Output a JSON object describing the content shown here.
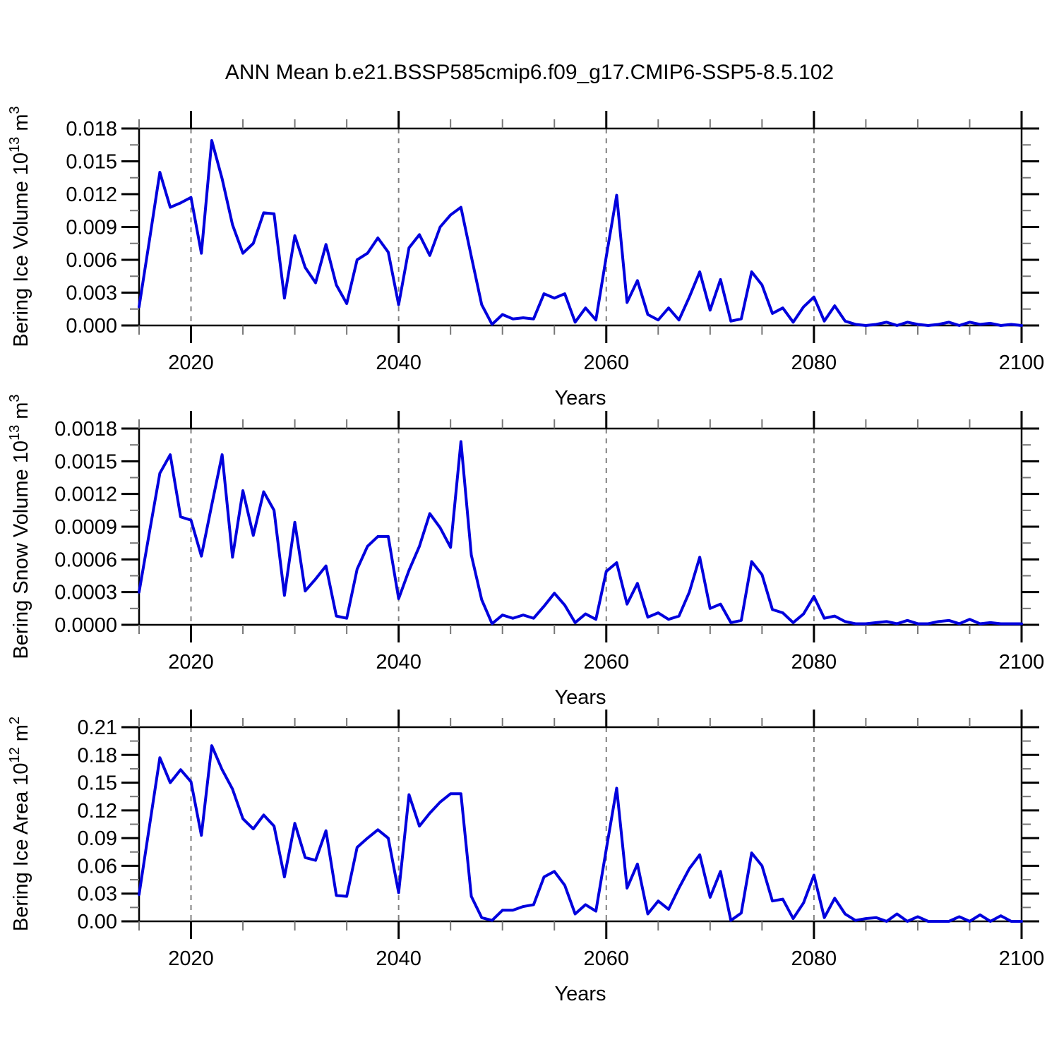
{
  "title": "ANN Mean b.e21.BSSP585cmip6.f09_g17.CMIP6-SSP5-8.5.102",
  "xlabel": "Years",
  "colors": {
    "line": "#0000dd",
    "axis": "#000000",
    "grid": "#808080",
    "minor_tick": "#777777"
  },
  "chart_data": [
    {
      "type": "line",
      "id": "bering-ice-volume",
      "ylabel": {
        "prefix": "Bering Ice Volume 10",
        "exp": "13",
        "mid": " m",
        "exp2": "3"
      },
      "ylim": [
        0,
        0.018
      ],
      "ytick_step": 0.003,
      "ydecimals": 3,
      "x_start": 2015,
      "x_end": 2100,
      "x_step": 1,
      "xticks": [
        2020,
        2040,
        2060,
        2080,
        2100
      ],
      "x_minor_step": 5,
      "grid_at": [
        2020,
        2040,
        2060,
        2080
      ],
      "grid_style": "dashed",
      "legend": "none",
      "values": [
        0.0017,
        0.0078,
        0.014,
        0.0108,
        0.0112,
        0.0117,
        0.0066,
        0.0169,
        0.0134,
        0.0092,
        0.0066,
        0.0075,
        0.0103,
        0.0102,
        0.0025,
        0.0082,
        0.0053,
        0.0039,
        0.0074,
        0.0037,
        0.002,
        0.006,
        0.0066,
        0.008,
        0.0067,
        0.0019,
        0.0071,
        0.0083,
        0.0064,
        0.009,
        0.0101,
        0.0108,
        0.0063,
        0.0019,
        0.0001,
        0.001,
        0.0006,
        0.0007,
        0.0006,
        0.0029,
        0.0025,
        0.0029,
        0.0003,
        0.0016,
        0.0005,
        0.0063,
        0.0119,
        0.0021,
        0.0041,
        0.001,
        0.0005,
        0.0016,
        0.0005,
        0.0026,
        0.0049,
        0.0014,
        0.0042,
        0.0004,
        0.0006,
        0.0049,
        0.0037,
        0.0011,
        0.0016,
        0.0003,
        0.0017,
        0.0026,
        0.0004,
        0.0018,
        0.0004,
        0.0001,
        0.0,
        0.0001,
        0.0003,
        0.0,
        0.0003,
        0.0001,
        0.0,
        0.0001,
        0.0003,
        0.0,
        0.0003,
        0.0001,
        0.0002,
        0.0,
        0.0001,
        0.0
      ]
    },
    {
      "type": "line",
      "id": "bering-snow-volume",
      "ylabel": {
        "prefix": "Bering Snow Volume 10",
        "exp": "13",
        "mid": " m",
        "exp2": "3"
      },
      "ylim": [
        0,
        0.0018
      ],
      "ytick_step": 0.0003,
      "ydecimals": 4,
      "x_start": 2015,
      "x_end": 2100,
      "x_step": 1,
      "xticks": [
        2020,
        2040,
        2060,
        2080,
        2100
      ],
      "x_minor_step": 5,
      "grid_at": [
        2020,
        2040,
        2060,
        2080
      ],
      "grid_style": "dashed",
      "legend": "none",
      "values": [
        0.0003,
        0.00085,
        0.00139,
        0.00156,
        0.00099,
        0.00096,
        0.00063,
        0.0011,
        0.00156,
        0.00062,
        0.00123,
        0.00082,
        0.00122,
        0.00105,
        0.00027,
        0.00094,
        0.00031,
        0.00042,
        0.00054,
        8e-05,
        6e-05,
        0.00051,
        0.00072,
        0.00081,
        0.00081,
        0.00024,
        0.0005,
        0.00072,
        0.00102,
        0.00089,
        0.00071,
        0.00168,
        0.00064,
        0.00023,
        1e-05,
        9e-05,
        6e-05,
        9e-05,
        6e-05,
        0.00017,
        0.00029,
        0.00018,
        2e-05,
        0.0001,
        5e-05,
        0.00049,
        0.00057,
        0.00019,
        0.00038,
        7e-05,
        0.00011,
        5e-05,
        8e-05,
        0.0003,
        0.00062,
        0.00015,
        0.00019,
        2e-05,
        4e-05,
        0.00058,
        0.00046,
        0.00014,
        0.00011,
        2e-05,
        0.0001,
        0.00026,
        6e-05,
        8e-05,
        3e-05,
        1e-05,
        1e-05,
        2e-05,
        3e-05,
        1e-05,
        4e-05,
        1e-05,
        1e-05,
        3e-05,
        4e-05,
        1e-05,
        5e-05,
        1e-05,
        2e-05,
        1e-05,
        1e-05,
        1e-05
      ]
    },
    {
      "type": "line",
      "id": "bering-ice-area",
      "ylabel": {
        "prefix": "Bering Ice Area 10",
        "exp": "12",
        "mid": " m",
        "exp2": "2"
      },
      "ylim": [
        0,
        0.21
      ],
      "ytick_step": 0.03,
      "ydecimals": 2,
      "x_start": 2015,
      "x_end": 2100,
      "x_step": 1,
      "xticks": [
        2020,
        2040,
        2060,
        2080,
        2100
      ],
      "x_minor_step": 5,
      "grid_at": [
        2020,
        2040,
        2060,
        2080
      ],
      "grid_style": "dashed",
      "legend": "none",
      "values": [
        0.029,
        0.103,
        0.177,
        0.15,
        0.164,
        0.151,
        0.093,
        0.19,
        0.164,
        0.143,
        0.111,
        0.1,
        0.115,
        0.103,
        0.048,
        0.106,
        0.069,
        0.066,
        0.098,
        0.028,
        0.027,
        0.08,
        0.09,
        0.099,
        0.09,
        0.031,
        0.137,
        0.103,
        0.117,
        0.129,
        0.138,
        0.138,
        0.027,
        0.004,
        0.001,
        0.012,
        0.012,
        0.016,
        0.018,
        0.048,
        0.054,
        0.039,
        0.008,
        0.018,
        0.011,
        0.078,
        0.144,
        0.036,
        0.062,
        0.008,
        0.022,
        0.013,
        0.036,
        0.057,
        0.072,
        0.026,
        0.054,
        0.001,
        0.009,
        0.074,
        0.06,
        0.022,
        0.024,
        0.003,
        0.02,
        0.05,
        0.004,
        0.025,
        0.008,
        0.001,
        0.003,
        0.004,
        0.0,
        0.008,
        0.0,
        0.005,
        0.0,
        0.0,
        0.0,
        0.005,
        0.0,
        0.007,
        0.0,
        0.006,
        0.0,
        0.0
      ]
    }
  ]
}
